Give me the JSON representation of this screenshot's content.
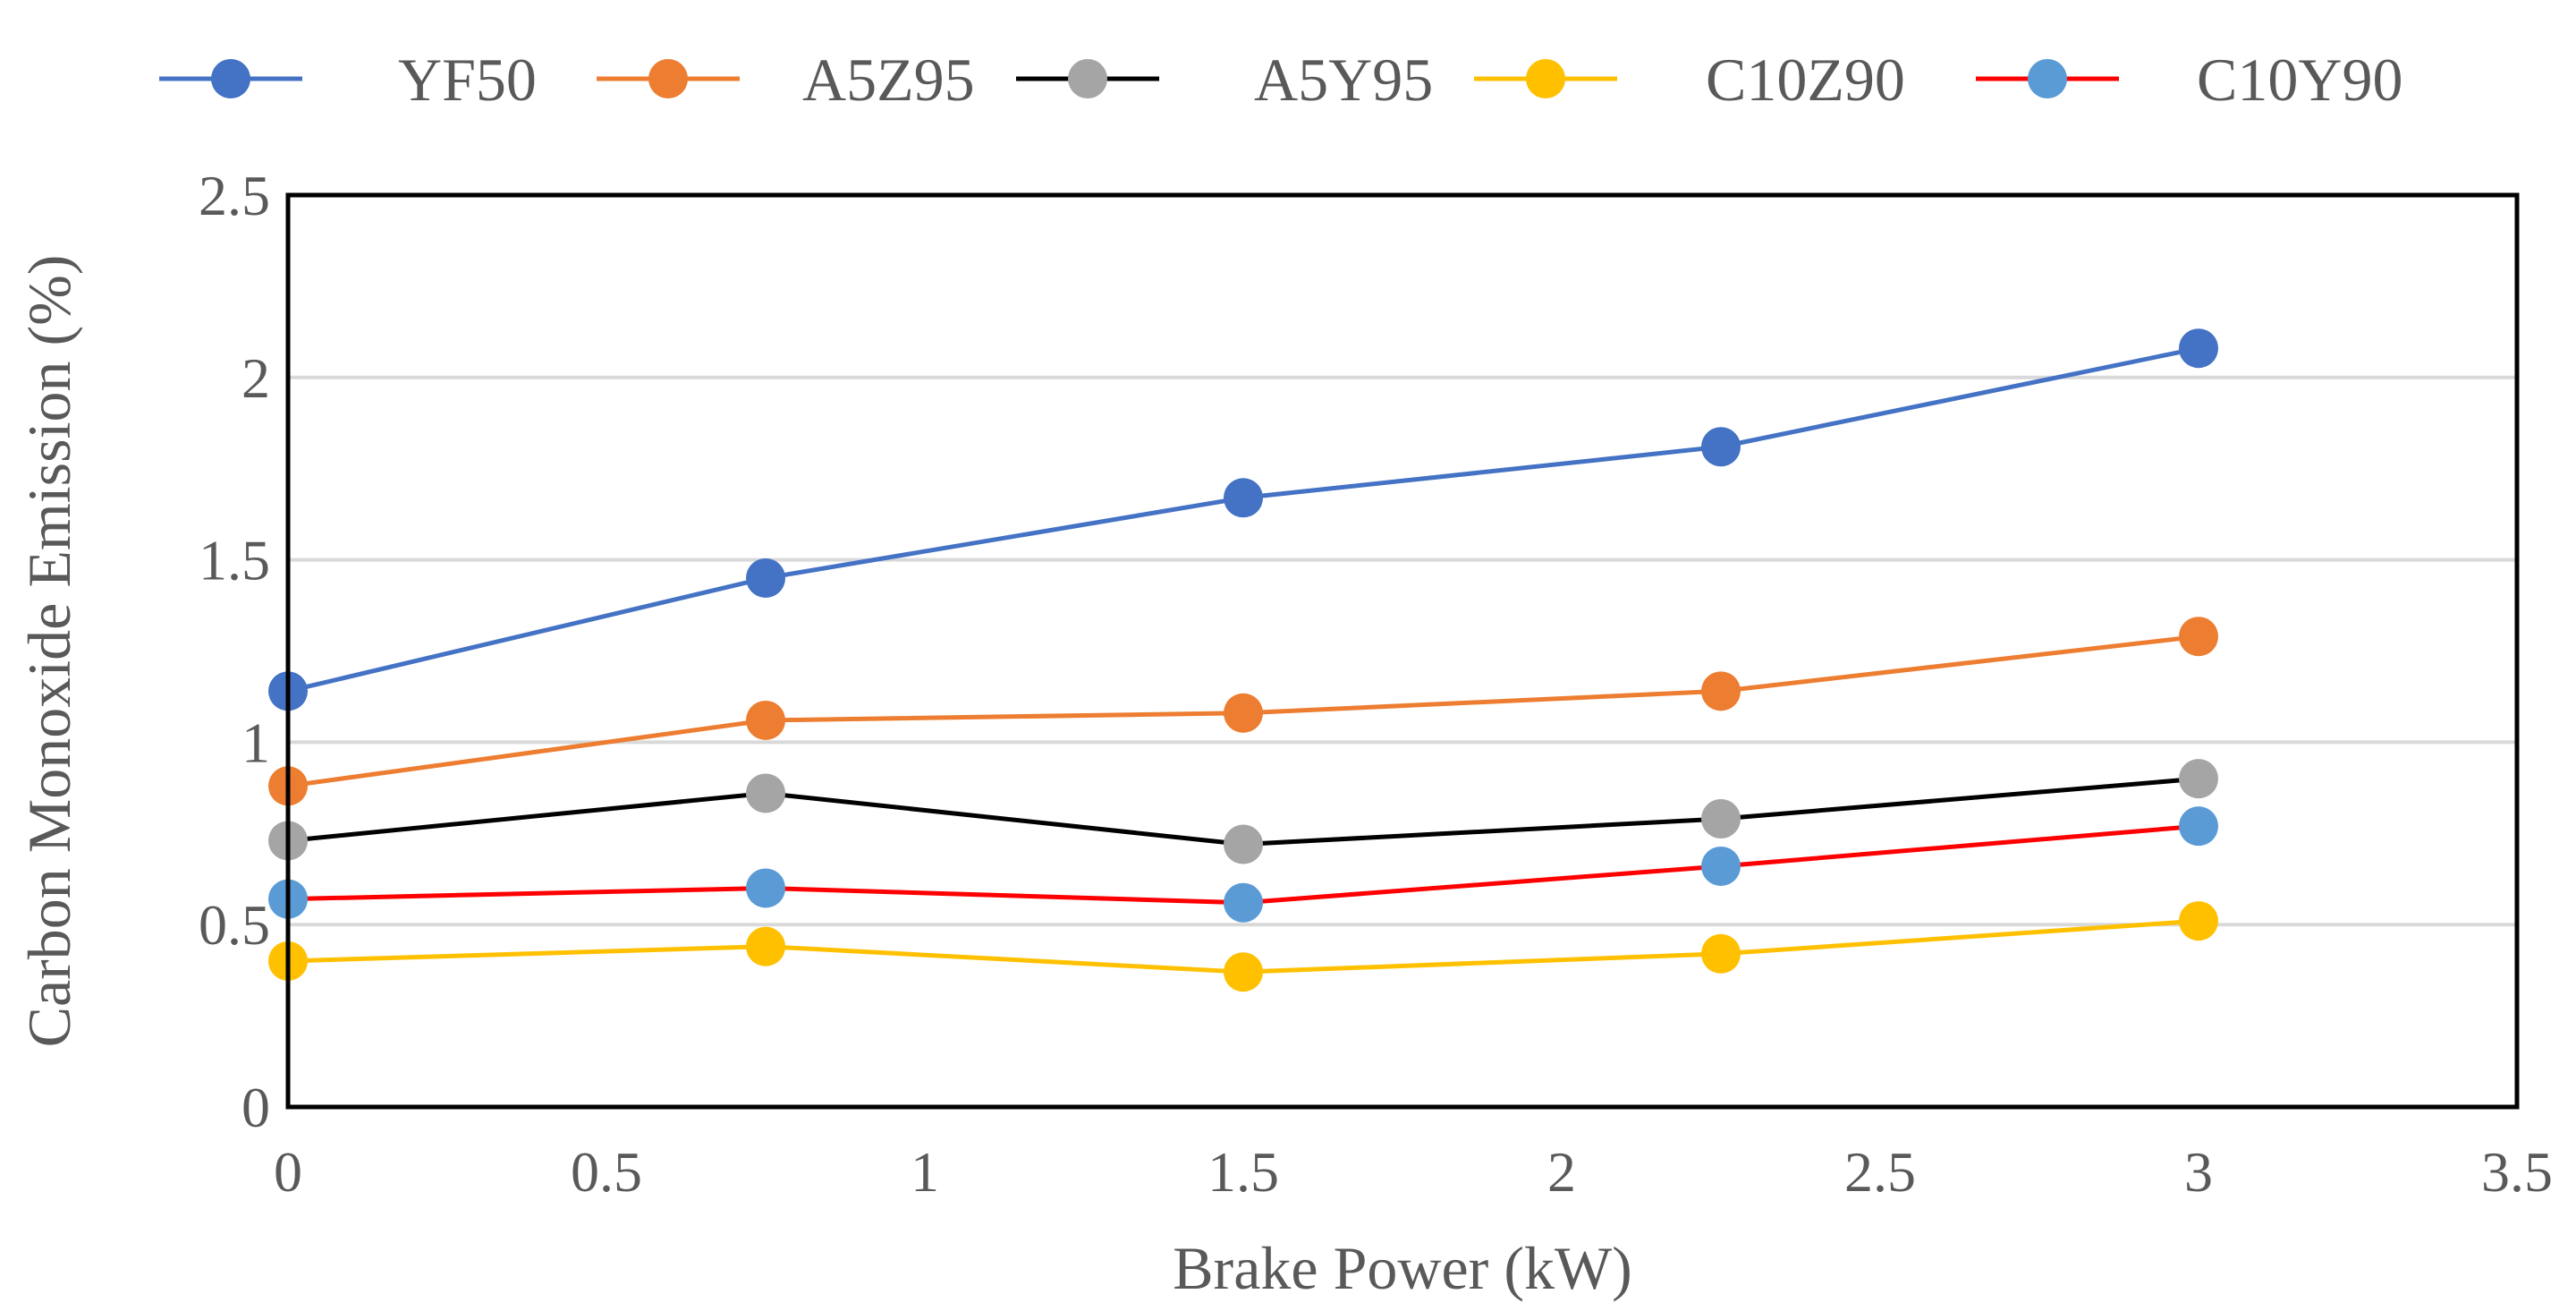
{
  "chart_data": {
    "type": "line",
    "title": "",
    "xlabel": "Brake Power (kW)",
    "ylabel": "Carbon Monoxide Emission (%)",
    "xlim": [
      0,
      3.5
    ],
    "ylim": [
      0,
      2.5
    ],
    "xticks": [
      "0",
      "0.5",
      "1",
      "1.5",
      "2",
      "2.5",
      "3",
      "3.5"
    ],
    "yticks": [
      "0",
      "0.5",
      "1",
      "1.5",
      "2",
      "2.5"
    ],
    "grid": "horizontal",
    "legend_position": "top",
    "x": [
      0,
      0.75,
      1.5,
      2.25,
      3
    ],
    "series": [
      {
        "name": "YF50",
        "line_color": "#4472C4",
        "marker_color": "#4472C4",
        "values": [
          1.14,
          1.45,
          1.67,
          1.81,
          2.08
        ]
      },
      {
        "name": "A5Z95",
        "line_color": "#ED7D31",
        "marker_color": "#ED7D31",
        "values": [
          0.88,
          1.06,
          1.08,
          1.14,
          1.29
        ]
      },
      {
        "name": "A5Y95",
        "line_color": "#000000",
        "marker_color": "#A5A5A5",
        "values": [
          0.73,
          0.86,
          0.72,
          0.79,
          0.9
        ]
      },
      {
        "name": "C10Z90",
        "line_color": "#FFC000",
        "marker_color": "#FFC000",
        "values": [
          0.4,
          0.44,
          0.37,
          0.42,
          0.51
        ]
      },
      {
        "name": "C10Y90",
        "line_color": "#FF0000",
        "marker_color": "#5B9BD5",
        "values": [
          0.57,
          0.6,
          0.56,
          0.66,
          0.77
        ]
      }
    ]
  }
}
